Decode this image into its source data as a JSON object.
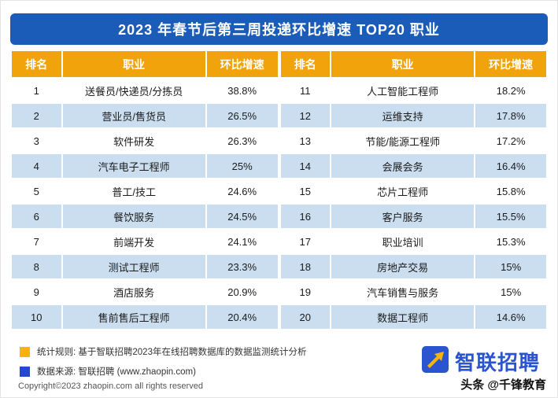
{
  "title": "2023 年春节后第三周投递环比增速 TOP20 职业",
  "colors": {
    "title_bar": "#1a5cb8",
    "header_gold": "#f0a30a",
    "row_blue": "#cbdef0",
    "legend_yellow": "#f5b30d",
    "legend_blue": "#2647d0",
    "logo_blue": "#2b55d0"
  },
  "table": {
    "headers": [
      "排名",
      "职业",
      "环比增速"
    ]
  },
  "chart_data": {
    "type": "table",
    "title": "2023 年春节后第三周投递环比增速 TOP20 职业",
    "columns": [
      "排名",
      "职业",
      "环比增速"
    ],
    "rows": [
      [
        "1",
        "送餐员/快递员/分拣员",
        "38.8%"
      ],
      [
        "2",
        "营业员/售货员",
        "26.5%"
      ],
      [
        "3",
        "软件研发",
        "26.3%"
      ],
      [
        "4",
        "汽车电子工程师",
        "25%"
      ],
      [
        "5",
        "普工/技工",
        "24.6%"
      ],
      [
        "6",
        "餐饮服务",
        "24.5%"
      ],
      [
        "7",
        "前端开发",
        "24.1%"
      ],
      [
        "8",
        "测试工程师",
        "23.3%"
      ],
      [
        "9",
        "酒店服务",
        "20.9%"
      ],
      [
        "10",
        "售前售后工程师",
        "20.4%"
      ],
      [
        "11",
        "人工智能工程师",
        "18.2%"
      ],
      [
        "12",
        "运维支持",
        "17.8%"
      ],
      [
        "13",
        "节能/能源工程师",
        "17.2%"
      ],
      [
        "14",
        "会展会务",
        "16.4%"
      ],
      [
        "15",
        "芯片工程师",
        "15.8%"
      ],
      [
        "16",
        "客户服务",
        "15.5%"
      ],
      [
        "17",
        "职业培训",
        "15.3%"
      ],
      [
        "18",
        "房地产交易",
        "15%"
      ],
      [
        "19",
        "汽车销售与服务",
        "15%"
      ],
      [
        "20",
        "数据工程师",
        "14.6%"
      ]
    ]
  },
  "footer": {
    "legend": [
      {
        "label": "统计规则: 基于智联招聘2023年在线招聘数据库的数据监测统计分析"
      },
      {
        "label": "数据来源: 智联招聘 (www.zhaopin.com)"
      }
    ],
    "logo_text": "智联招聘",
    "copyright": "Copyright©2023 zhaopin.com all rights reserved",
    "social_watermark": "头条 @千锋教育"
  },
  "watermark_text": "智联招聘"
}
